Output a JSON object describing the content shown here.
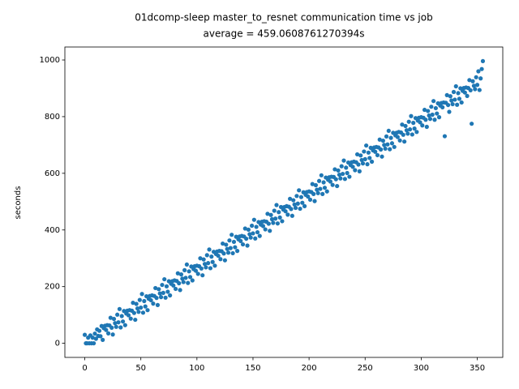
{
  "chart_data": {
    "type": "scatter",
    "title": "01dcomp-sleep master_to_resnet communication time vs job",
    "subtitle": "average = 459.0608761270394s",
    "y_label": "seconds",
    "color": "#1f77b4",
    "xlim": [
      -17.75,
      372.75
    ],
    "ylim": [
      -49.8,
      1045.8
    ],
    "xticks": [
      0,
      50,
      100,
      150,
      200,
      250,
      300,
      350
    ],
    "yticks": [
      0,
      200,
      400,
      600,
      800,
      1000
    ],
    "x": [
      0,
      1,
      2,
      3,
      4,
      5,
      6,
      7,
      8,
      9,
      10,
      11,
      12,
      13,
      14,
      15,
      16,
      17,
      18,
      19,
      20,
      21,
      22,
      23,
      24,
      25,
      26,
      27,
      28,
      29,
      30,
      31,
      32,
      33,
      34,
      35,
      36,
      37,
      38,
      39,
      40,
      41,
      42,
      43,
      44,
      45,
      46,
      47,
      48,
      49,
      50,
      51,
      52,
      53,
      54,
      55,
      56,
      57,
      58,
      59,
      60,
      61,
      62,
      63,
      64,
      65,
      66,
      67,
      68,
      69,
      70,
      71,
      72,
      73,
      74,
      75,
      76,
      77,
      78,
      79,
      80,
      81,
      82,
      83,
      84,
      85,
      86,
      87,
      88,
      89,
      90,
      91,
      92,
      93,
      94,
      95,
      96,
      97,
      98,
      99,
      100,
      101,
      102,
      103,
      104,
      105,
      106,
      107,
      108,
      109,
      110,
      111,
      112,
      113,
      114,
      115,
      116,
      117,
      118,
      119,
      120,
      121,
      122,
      123,
      124,
      125,
      126,
      127,
      128,
      129,
      130,
      131,
      132,
      133,
      134,
      135,
      136,
      137,
      138,
      139,
      140,
      141,
      142,
      143,
      144,
      145,
      146,
      147,
      148,
      149,
      150,
      151,
      152,
      153,
      154,
      155,
      156,
      157,
      158,
      159,
      160,
      161,
      162,
      163,
      164,
      165,
      166,
      167,
      168,
      169,
      170,
      171,
      172,
      173,
      174,
      175,
      176,
      177,
      178,
      179,
      180,
      181,
      182,
      183,
      184,
      185,
      186,
      187,
      188,
      189,
      190,
      191,
      192,
      193,
      194,
      195,
      196,
      197,
      198,
      199,
      200,
      201,
      202,
      203,
      204,
      205,
      206,
      207,
      208,
      209,
      210,
      211,
      212,
      213,
      214,
      215,
      216,
      217,
      218,
      219,
      220,
      221,
      222,
      223,
      224,
      225,
      226,
      227,
      228,
      229,
      230,
      231,
      232,
      233,
      234,
      235,
      236,
      237,
      238,
      239,
      240,
      241,
      242,
      243,
      244,
      245,
      246,
      247,
      248,
      249,
      250,
      251,
      252,
      253,
      254,
      255,
      256,
      257,
      258,
      259,
      260,
      261,
      262,
      263,
      264,
      265,
      266,
      267,
      268,
      269,
      270,
      271,
      272,
      273,
      274,
      275,
      276,
      277,
      278,
      279,
      280,
      281,
      282,
      283,
      284,
      285,
      286,
      287,
      288,
      289,
      290,
      291,
      292,
      293,
      294,
      295,
      296,
      297,
      298,
      299,
      300,
      301,
      302,
      303,
      304,
      305,
      306,
      307,
      308,
      309,
      310,
      311,
      312,
      313,
      314,
      315,
      316,
      317,
      318,
      319,
      320,
      321,
      322,
      323,
      324,
      325,
      326,
      327,
      328,
      329,
      330,
      331,
      332,
      333,
      334,
      335,
      336,
      337,
      338,
      339,
      340,
      341,
      342,
      343,
      344,
      345,
      346,
      347,
      348,
      349,
      350,
      351,
      352,
      353,
      354,
      355
    ],
    "values": [
      30,
      0,
      0,
      20,
      0,
      28,
      0,
      20,
      0,
      34,
      16,
      49,
      26,
      44,
      25,
      61,
      12,
      53,
      62,
      47,
      64,
      35,
      63,
      90,
      55,
      31,
      86,
      71,
      58,
      101,
      74,
      121,
      56,
      96,
      77,
      114,
      64,
      105,
      115,
      99,
      117,
      87,
      115,
      143,
      107,
      83,
      139,
      123,
      111,
      153,
      126,
      174,
      108,
      149,
      130,
      166,
      117,
      157,
      167,
      152,
      169,
      140,
      167,
      195,
      160,
      135,
      191,
      176,
      163,
      206,
      178,
      226,
      161,
      201,
      182,
      219,
      169,
      210,
      219,
      204,
      222,
      192,
      220,
      247,
      212,
      188,
      243,
      228,
      216,
      258,
      231,
      278,
      213,
      254,
      234,
      271,
      222,
      262,
      272,
      256,
      274,
      245,
      272,
      300,
      264,
      240,
      296,
      280,
      268,
      311,
      283,
      331,
      265,
      306,
      287,
      323,
      274,
      315,
      324,
      309,
      326,
      297,
      325,
      352,
      317,
      293,
      348,
      333,
      320,
      363,
      336,
      383,
      318,
      358,
      339,
      376,
      326,
      367,
      377,
      361,
      379,
      349,
      377,
      405,
      369,
      345,
      401,
      385,
      373,
      415,
      388,
      436,
      370,
      411,
      392,
      428,
      379,
      419,
      429,
      414,
      431,
      402,
      429,
      457,
      422,
      397,
      453,
      438,
      425,
      468,
      440,
      488,
      423,
      463,
      444,
      481,
      431,
      472,
      481,
      466,
      484,
      454,
      482,
      510,
      474,
      450,
      505,
      490,
      478,
      520,
      493,
      540,
      475,
      516,
      496,
      533,
      484,
      524,
      534,
      518,
      536,
      507,
      534,
      562,
      527,
      502,
      558,
      542,
      530,
      573,
      545,
      593,
      527,
      568,
      549,
      585,
      536,
      577,
      586,
      571,
      588,
      559,
      587,
      614,
      579,
      555,
      610,
      595,
      582,
      625,
      598,
      645,
      580,
      620,
      601,
      638,
      588,
      629,
      639,
      623,
      641,
      611,
      639,
      667,
      631,
      607,
      663,
      647,
      635,
      677,
      650,
      698,
      632,
      673,
      654,
      690,
      641,
      681,
      691,
      676,
      693,
      664,
      691,
      719,
      684,
      659,
      715,
      700,
      687,
      730,
      702,
      750,
      685,
      725,
      706,
      743,
      693,
      734,
      743,
      728,
      746,
      716,
      744,
      772,
      736,
      712,
      767,
      752,
      740,
      782,
      755,
      802,
      737,
      778,
      758,
      795,
      746,
      786,
      796,
      780,
      798,
      769,
      796,
      824,
      789,
      764,
      820,
      804,
      792,
      835,
      807,
      855,
      789,
      830,
      811,
      847,
      798,
      839,
      848,
      833,
      850,
      731,
      849,
      876,
      841,
      817,
      872,
      857,
      844,
      887,
      860,
      907,
      842,
      883,
      863,
      900,
      850,
      891,
      901,
      885,
      903,
      873,
      901,
      929,
      893,
      775,
      925,
      909,
      897,
      939,
      912,
      960,
      894,
      935,
      968,
      996
    ]
  }
}
